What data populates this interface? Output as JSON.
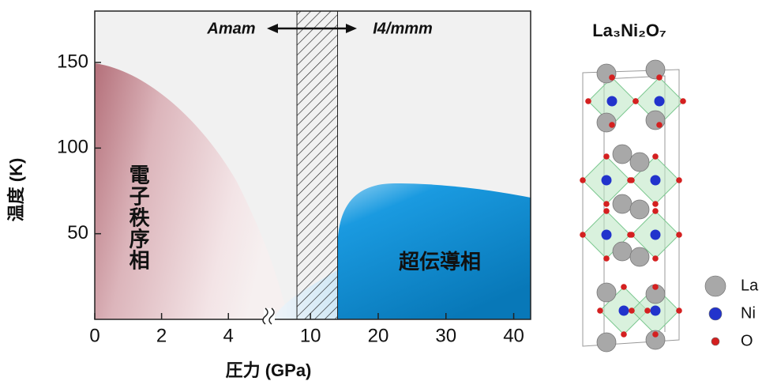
{
  "chart_data": {
    "type": "phase-diagram",
    "xlabel": "圧力 (GPa)",
    "ylabel": "温度 (K)",
    "ylim": [
      0,
      180
    ],
    "yticks": [
      50,
      100,
      150
    ],
    "x_segments": [
      {
        "xlim": [
          0,
          5.2
        ],
        "xticks": [
          0,
          2,
          4
        ]
      },
      {
        "xlim": [
          4.5,
          42.5
        ],
        "xticks": [
          10,
          20,
          30,
          40
        ]
      }
    ],
    "hatch_region": [
      8,
      14
    ],
    "annotations": [
      "Amam",
      "I4/mmm",
      "電子秩序相",
      "超伝導相"
    ]
  },
  "structure": {
    "title": "La₃Ni₂O₇",
    "legend": [
      {
        "name": "La",
        "color": "#a8a8a8"
      },
      {
        "name": "Ni",
        "color": "#2233cc"
      },
      {
        "name": "O",
        "color": "#d42020"
      }
    ]
  }
}
